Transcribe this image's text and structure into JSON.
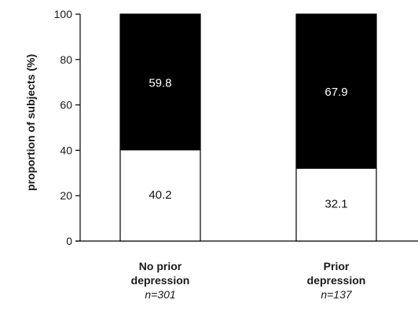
{
  "chart_data": {
    "type": "bar",
    "stacked": true,
    "title": "",
    "xlabel": "",
    "ylabel": "proportion of subjects (%)",
    "ylim": [
      0,
      100
    ],
    "yticks": [
      0,
      20,
      40,
      60,
      80,
      100
    ],
    "grid": false,
    "categories": [
      {
        "lines": [
          "No prior",
          "depression"
        ],
        "n": "n=301"
      },
      {
        "lines": [
          "Prior",
          "depression"
        ],
        "n": "n=137"
      }
    ],
    "series": [
      {
        "values": [
          40.2,
          32.1
        ],
        "fill": "#ffffff",
        "label_color": "#111111"
      },
      {
        "values": [
          59.8,
          67.9
        ],
        "fill": "#000000",
        "label_color": "#ffffff"
      }
    ],
    "data_labels": [
      [
        "40.2",
        "32.1"
      ],
      [
        "59.8",
        "67.9"
      ]
    ]
  }
}
